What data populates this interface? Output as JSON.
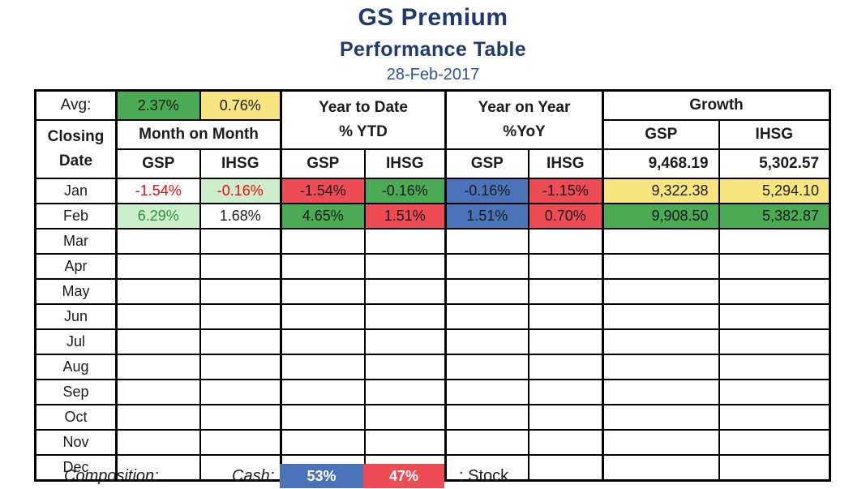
{
  "title": {
    "app": "GS Premium",
    "subtitle": "Performance Table",
    "date": "28-Feb-2017"
  },
  "colors": {
    "title_navy": "#1f3a6b",
    "date_blue": "#2d5391",
    "green": "#4bab55",
    "light_green": "#cdeecb",
    "yellow": "#f8e57f",
    "red": "#ed4c55",
    "blue": "#4a73ba",
    "white": "#ffffff",
    "negative_text": "#f50808",
    "positive_text": "#2f8e3c",
    "border_black": "#000000"
  },
  "table": {
    "avg": {
      "label": "Avg:",
      "gsp": {
        "text": "2.37%",
        "bg": "green"
      },
      "ihsg": {
        "text": "0.76%",
        "bg": "yellow"
      }
    },
    "corner": {
      "line1": "Closing",
      "line2": "Date"
    },
    "mom": {
      "title": "Month on Month",
      "gsp": "GSP",
      "ihsg": "IHSG"
    },
    "ytd": {
      "line1": "Year to Date",
      "line2": "% YTD",
      "gsp": "GSP",
      "ihsg": "IHSG"
    },
    "yoy": {
      "line1": "Year on Year",
      "line2": "%YoY",
      "gsp": "GSP",
      "ihsg": "IHSG"
    },
    "growth": {
      "title": "Growth",
      "gsp": "GSP",
      "ihsg": "IHSG",
      "base_gsp": "9,468.19",
      "base_ihsg": "5,302.57"
    },
    "rows": [
      {
        "month": "Jan",
        "cells": [
          {
            "text": "-1.54%",
            "bg": "white",
            "fg": "negative_text"
          },
          {
            "text": "-0.16%",
            "bg": "light_green",
            "fg": "negative_text"
          },
          {
            "text": "-1.54%",
            "bg": "red"
          },
          {
            "text": "-0.16%",
            "bg": "green"
          },
          {
            "text": "-0.16%",
            "bg": "blue"
          },
          {
            "text": "-1.15%",
            "bg": "red"
          },
          {
            "text": "9,322.38",
            "bg": "yellow"
          },
          {
            "text": "5,294.10",
            "bg": "yellow"
          }
        ]
      },
      {
        "month": "Feb",
        "cells": [
          {
            "text": "6.29%",
            "bg": "light_green",
            "fg": "positive_text"
          },
          {
            "text": "1.68%",
            "bg": "white"
          },
          {
            "text": "4.65%",
            "bg": "green"
          },
          {
            "text": "1.51%",
            "bg": "red"
          },
          {
            "text": "1.51%",
            "bg": "blue"
          },
          {
            "text": "0.70%",
            "bg": "red"
          },
          {
            "text": "9,908.50",
            "bg": "green"
          },
          {
            "text": "5,382.87",
            "bg": "green"
          }
        ]
      },
      {
        "month": "Mar",
        "cells": [
          {
            "text": ""
          },
          {
            "text": ""
          },
          {
            "text": ""
          },
          {
            "text": ""
          },
          {
            "text": ""
          },
          {
            "text": ""
          },
          {
            "text": ""
          },
          {
            "text": ""
          }
        ]
      },
      {
        "month": "Apr",
        "cells": [
          {
            "text": ""
          },
          {
            "text": ""
          },
          {
            "text": ""
          },
          {
            "text": ""
          },
          {
            "text": ""
          },
          {
            "text": ""
          },
          {
            "text": ""
          },
          {
            "text": ""
          }
        ]
      },
      {
        "month": "May",
        "cells": [
          {
            "text": ""
          },
          {
            "text": ""
          },
          {
            "text": ""
          },
          {
            "text": ""
          },
          {
            "text": ""
          },
          {
            "text": ""
          },
          {
            "text": ""
          },
          {
            "text": ""
          }
        ]
      },
      {
        "month": "Jun",
        "cells": [
          {
            "text": ""
          },
          {
            "text": ""
          },
          {
            "text": ""
          },
          {
            "text": ""
          },
          {
            "text": ""
          },
          {
            "text": ""
          },
          {
            "text": ""
          },
          {
            "text": ""
          }
        ]
      },
      {
        "month": "Jul",
        "cells": [
          {
            "text": ""
          },
          {
            "text": ""
          },
          {
            "text": ""
          },
          {
            "text": ""
          },
          {
            "text": ""
          },
          {
            "text": ""
          },
          {
            "text": ""
          },
          {
            "text": ""
          }
        ]
      },
      {
        "month": "Aug",
        "cells": [
          {
            "text": ""
          },
          {
            "text": ""
          },
          {
            "text": ""
          },
          {
            "text": ""
          },
          {
            "text": ""
          },
          {
            "text": ""
          },
          {
            "text": ""
          },
          {
            "text": ""
          }
        ]
      },
      {
        "month": "Sep",
        "cells": [
          {
            "text": ""
          },
          {
            "text": ""
          },
          {
            "text": ""
          },
          {
            "text": ""
          },
          {
            "text": ""
          },
          {
            "text": ""
          },
          {
            "text": ""
          },
          {
            "text": ""
          }
        ]
      },
      {
        "month": "Oct",
        "cells": [
          {
            "text": ""
          },
          {
            "text": ""
          },
          {
            "text": ""
          },
          {
            "text": ""
          },
          {
            "text": ""
          },
          {
            "text": ""
          },
          {
            "text": ""
          },
          {
            "text": ""
          }
        ]
      },
      {
        "month": "Nov",
        "cells": [
          {
            "text": ""
          },
          {
            "text": ""
          },
          {
            "text": ""
          },
          {
            "text": ""
          },
          {
            "text": ""
          },
          {
            "text": ""
          },
          {
            "text": ""
          },
          {
            "text": ""
          }
        ]
      },
      {
        "month": "Dec",
        "cells": [
          {
            "text": ""
          },
          {
            "text": ""
          },
          {
            "text": ""
          },
          {
            "text": ""
          },
          {
            "text": ""
          },
          {
            "text": ""
          },
          {
            "text": ""
          },
          {
            "text": ""
          }
        ]
      }
    ]
  },
  "footer": {
    "composition_label": "Composition:",
    "cash_label": "Cash:",
    "cash_cell": {
      "text": "53%",
      "bg": "blue"
    },
    "stock_cell": {
      "text": "47%",
      "bg": "red"
    },
    "stock_label": ": Stock"
  }
}
